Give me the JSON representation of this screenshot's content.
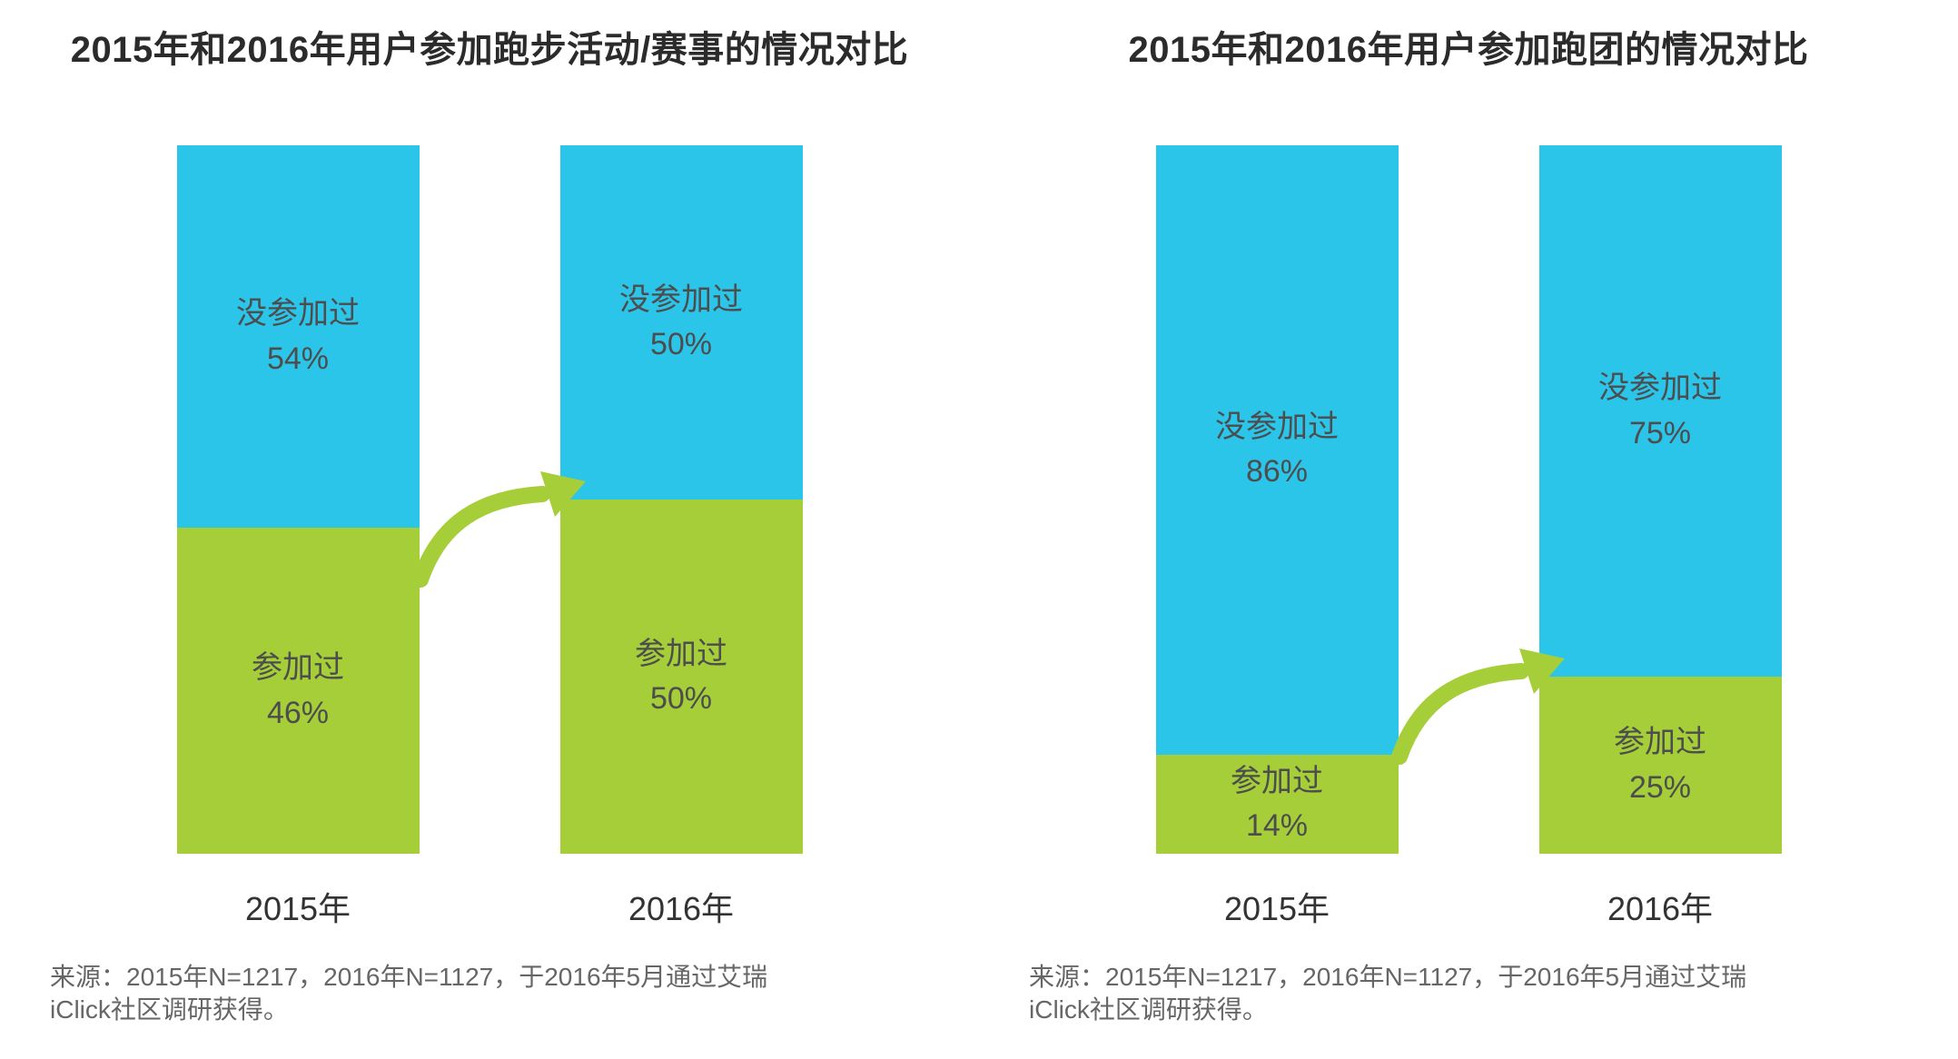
{
  "colors": {
    "not_participated": "#2bc5ea",
    "participated": "#a5ce39",
    "arrow": "#a5ce39",
    "title_text": "#2b2b2b",
    "segment_text": "#4d4d4d",
    "source_text": "#666666"
  },
  "chart_data": [
    {
      "type": "bar",
      "stacked": true,
      "title": "2015年和2016年用户参加跑步活动/赛事的情况对比",
      "categories": [
        "2015年",
        "2016年"
      ],
      "unit": "%",
      "ylim": [
        0,
        100
      ],
      "legend": "none",
      "series": [
        {
          "name": "没参加过",
          "color": "#2bc5ea",
          "values": [
            54,
            50
          ]
        },
        {
          "name": "参加过",
          "color": "#a5ce39",
          "values": [
            46,
            50
          ]
        }
      ],
      "bars": [
        {
          "category": "2015年",
          "segments": [
            {
              "label": "没参加过",
              "value": 54,
              "value_text": "54%"
            },
            {
              "label": "参加过",
              "value": 46,
              "value_text": "46%"
            }
          ]
        },
        {
          "category": "2016年",
          "segments": [
            {
              "label": "没参加过",
              "value": 50,
              "value_text": "50%"
            },
            {
              "label": "参加过",
              "value": 50,
              "value_text": "50%"
            }
          ]
        }
      ],
      "annotation": "green curved arrow indicating increase from 2015 to 2016",
      "source_line1": "来源：2015年N=1217，2016年N=1127，于2016年5月通过艾瑞",
      "source_line2": "iClick社区调研获得。"
    },
    {
      "type": "bar",
      "stacked": true,
      "title": "2015年和2016年用户参加跑团的情况对比",
      "categories": [
        "2015年",
        "2016年"
      ],
      "unit": "%",
      "ylim": [
        0,
        100
      ],
      "legend": "none",
      "series": [
        {
          "name": "没参加过",
          "color": "#2bc5ea",
          "values": [
            86,
            75
          ]
        },
        {
          "name": "参加过",
          "color": "#a5ce39",
          "values": [
            14,
            25
          ]
        }
      ],
      "bars": [
        {
          "category": "2015年",
          "segments": [
            {
              "label": "没参加过",
              "value": 86,
              "value_text": "86%"
            },
            {
              "label": "参加过",
              "value": 14,
              "value_text": "14%"
            }
          ]
        },
        {
          "category": "2016年",
          "segments": [
            {
              "label": "没参加过",
              "value": 75,
              "value_text": "75%"
            },
            {
              "label": "参加过",
              "value": 25,
              "value_text": "25%"
            }
          ]
        }
      ],
      "annotation": "green curved arrow indicating increase from 2015 to 2016",
      "source_line1": "来源：2015年N=1217，2016年N=1127，于2016年5月通过艾瑞",
      "source_line2": "iClick社区调研获得。"
    }
  ]
}
